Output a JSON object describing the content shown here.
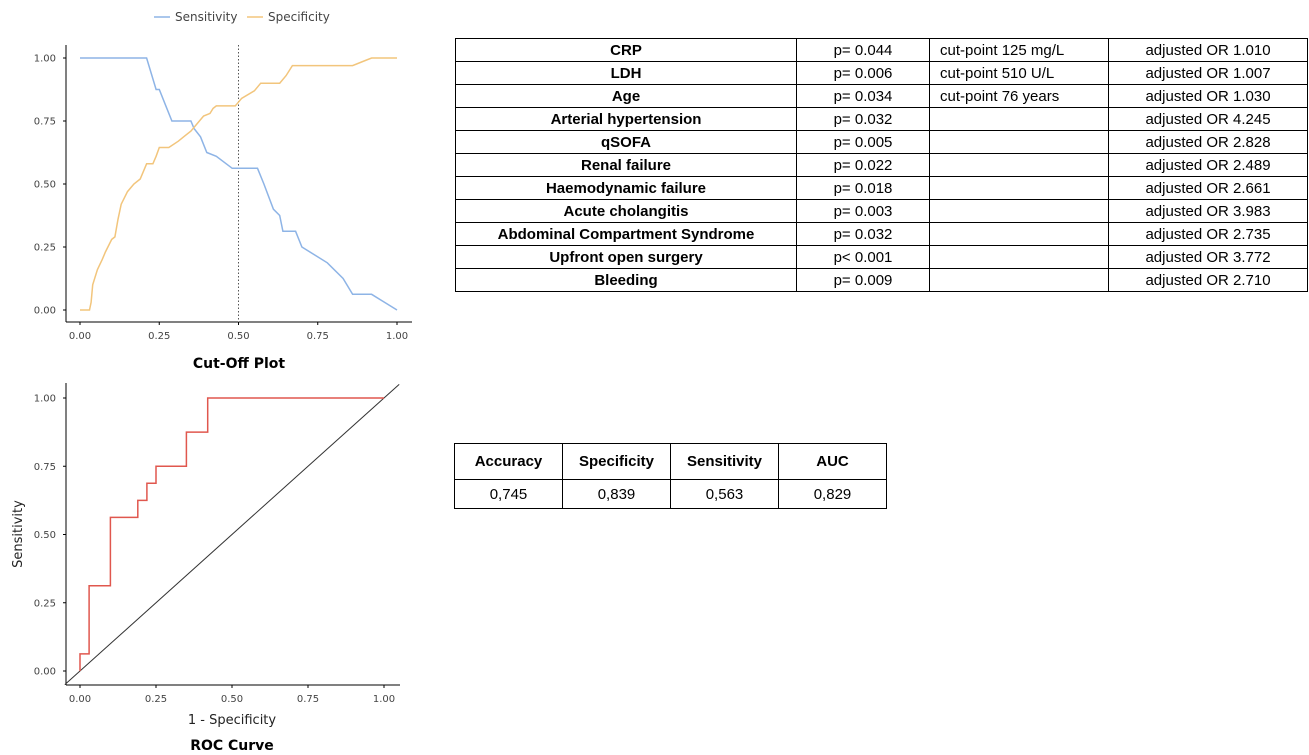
{
  "chart_data": [
    {
      "type": "line",
      "title": "Cut-Off Plot",
      "xlabel": "",
      "ylabel": "",
      "xlim": [
        0,
        1
      ],
      "ylim": [
        0,
        1
      ],
      "x_ticks": [
        "0.00",
        "0.25",
        "0.50",
        "0.75",
        "1.00"
      ],
      "y_ticks": [
        "0.00",
        "0.25",
        "0.50",
        "0.75",
        "1.00"
      ],
      "legend": "top",
      "annotations": [
        {
          "type": "vertical-dotted-line",
          "x": 0.5
        }
      ],
      "series": [
        {
          "name": "Sensitivity",
          "color": "#8EB4E6",
          "points": [
            [
              0,
              1
            ],
            [
              0.21,
              1
            ],
            [
              0.24,
              0.875
            ],
            [
              0.25,
              0.875
            ],
            [
              0.27,
              0.8125
            ],
            [
              0.29,
              0.75
            ],
            [
              0.35,
              0.75
            ],
            [
              0.36,
              0.72
            ],
            [
              0.38,
              0.6875
            ],
            [
              0.4,
              0.625
            ],
            [
              0.43,
              0.61
            ],
            [
              0.48,
              0.5625
            ],
            [
              0.56,
              0.5625
            ],
            [
              0.58,
              0.5
            ],
            [
              0.61,
              0.4
            ],
            [
              0.63,
              0.375
            ],
            [
              0.64,
              0.3125
            ],
            [
              0.68,
              0.3125
            ],
            [
              0.7,
              0.25
            ],
            [
              0.78,
              0.1875
            ],
            [
              0.83,
              0.125
            ],
            [
              0.86,
              0.0625
            ],
            [
              0.92,
              0.0625
            ],
            [
              1,
              0
            ]
          ]
        },
        {
          "name": "Specificity",
          "color": "#F2C57C",
          "points": [
            [
              0,
              0
            ],
            [
              0.03,
              0
            ],
            [
              0.035,
              0.03
            ],
            [
              0.04,
              0.1
            ],
            [
              0.055,
              0.16
            ],
            [
              0.07,
              0.2
            ],
            [
              0.08,
              0.23
            ],
            [
              0.1,
              0.28
            ],
            [
              0.11,
              0.29
            ],
            [
              0.12,
              0.36
            ],
            [
              0.13,
              0.42
            ],
            [
              0.15,
              0.47
            ],
            [
              0.17,
              0.5
            ],
            [
              0.19,
              0.52
            ],
            [
              0.2,
              0.55
            ],
            [
              0.21,
              0.58
            ],
            [
              0.23,
              0.58
            ],
            [
              0.24,
              0.61
            ],
            [
              0.25,
              0.645
            ],
            [
              0.28,
              0.645
            ],
            [
              0.31,
              0.67
            ],
            [
              0.33,
              0.69
            ],
            [
              0.35,
              0.71
            ],
            [
              0.37,
              0.74
            ],
            [
              0.39,
              0.77
            ],
            [
              0.41,
              0.78
            ],
            [
              0.42,
              0.8
            ],
            [
              0.43,
              0.81
            ],
            [
              0.49,
              0.81
            ],
            [
              0.51,
              0.84
            ],
            [
              0.55,
              0.87
            ],
            [
              0.57,
              0.9
            ],
            [
              0.63,
              0.9
            ],
            [
              0.65,
              0.93
            ],
            [
              0.67,
              0.97
            ],
            [
              0.86,
              0.97
            ],
            [
              0.9,
              0.99
            ],
            [
              0.92,
              1
            ],
            [
              1,
              1
            ]
          ]
        }
      ]
    },
    {
      "type": "line",
      "title": "ROC Curve",
      "xlabel": "1 - Specificity",
      "ylabel": "Sensitivity",
      "xlim": [
        0,
        1
      ],
      "ylim": [
        0,
        1
      ],
      "x_ticks": [
        "0.00",
        "0.25",
        "0.50",
        "0.75",
        "1.00"
      ],
      "y_ticks": [
        "0.00",
        "0.25",
        "0.50",
        "0.75",
        "1.00"
      ],
      "reference_line": [
        [
          -0.05,
          -0.05
        ],
        [
          1.05,
          1.05
        ]
      ],
      "series": [
        {
          "color": "#E0574E",
          "points": [
            [
              0,
              0
            ],
            [
              0,
              0.0625
            ],
            [
              0.03,
              0.0625
            ],
            [
              0.03,
              0.3125
            ],
            [
              0.1,
              0.3125
            ],
            [
              0.1,
              0.5625
            ],
            [
              0.19,
              0.5625
            ],
            [
              0.19,
              0.625
            ],
            [
              0.22,
              0.625
            ],
            [
              0.22,
              0.6875
            ],
            [
              0.25,
              0.6875
            ],
            [
              0.25,
              0.75
            ],
            [
              0.35,
              0.75
            ],
            [
              0.35,
              0.875
            ],
            [
              0.42,
              0.875
            ],
            [
              0.42,
              1
            ],
            [
              1,
              1
            ]
          ]
        }
      ]
    }
  ],
  "odds_table": {
    "rows": [
      {
        "variable": "CRP",
        "p": "p= 0.044",
        "cut": "cut-point 125 mg/L",
        "or": "adjusted OR 1.010"
      },
      {
        "variable": "LDH",
        "p": "p= 0.006",
        "cut": "cut-point 510 U/L",
        "or": "adjusted OR 1.007"
      },
      {
        "variable": "Age",
        "p": "p= 0.034",
        "cut": "cut-point 76 years",
        "or": "adjusted OR 1.030"
      },
      {
        "variable": "Arterial hypertension",
        "p": "p= 0.032",
        "cut": "",
        "or": "adjusted OR 4.245"
      },
      {
        "variable": "qSOFA",
        "p": "p= 0.005",
        "cut": "",
        "or": "adjusted OR 2.828"
      },
      {
        "variable": "Renal failure",
        "p": "p= 0.022",
        "cut": "",
        "or": "adjusted OR 2.489"
      },
      {
        "variable": "Haemodynamic failure",
        "p": "p= 0.018",
        "cut": "",
        "or": "adjusted OR 2.661"
      },
      {
        "variable": "Acute cholangitis",
        "p": "p= 0.003",
        "cut": "",
        "or": "adjusted OR 3.983"
      },
      {
        "variable": "Abdominal Compartment  Syndrome",
        "p": "p= 0.032",
        "cut": "",
        "or": "adjusted OR 2.735"
      },
      {
        "variable": "Upfront open surgery",
        "p": "p< 0.001",
        "cut": "",
        "or": "adjusted OR 3.772"
      },
      {
        "variable": "Bleeding",
        "p": "p= 0.009",
        "cut": "",
        "or": "adjusted OR 2.710"
      }
    ]
  },
  "metrics_table": {
    "headers": [
      "Accuracy",
      "Specificity",
      "Sensitivity",
      "AUC"
    ],
    "values": [
      "0,745",
      "0,839",
      "0,563",
      "0,829"
    ]
  }
}
